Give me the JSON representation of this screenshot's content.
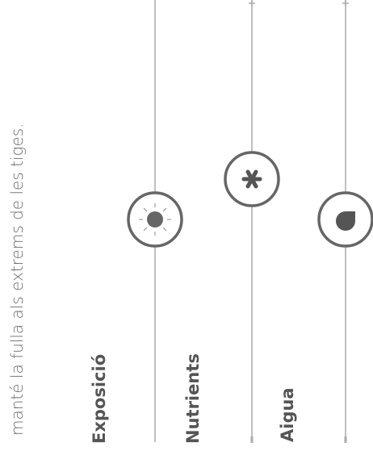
{
  "description": "manté la fulla als extrems de les tiges.",
  "controls": [
    {
      "label": "Exposició"
    },
    {
      "label": "Nutrients"
    },
    {
      "label": "Aigua"
    }
  ]
}
